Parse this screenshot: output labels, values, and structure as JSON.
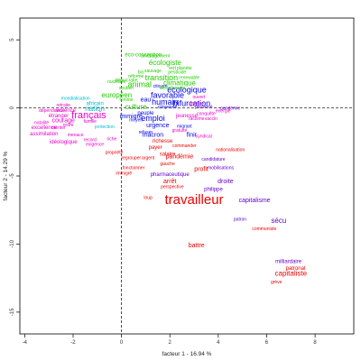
{
  "chart_data": {
    "type": "scatter",
    "title": "",
    "xlabel": "facteur  1  - 16.94 %",
    "ylabel": "facteur  2  - 14.29 %",
    "xlim": [
      -4.2,
      9.6
    ],
    "ylim": [
      -16.6,
      6.6
    ],
    "xticks": [
      "-4",
      "-2",
      "0",
      "2",
      "4",
      "6",
      "8"
    ],
    "xtick_values": [
      -4,
      -2,
      0,
      2,
      4,
      6,
      8
    ],
    "yticks": [
      "5",
      "0",
      "-5",
      "-10",
      "-15"
    ],
    "ytick_values": [
      5,
      0,
      -5,
      -10,
      -15
    ],
    "reference_lines": {
      "x": 0,
      "y": 0,
      "style": "dashed"
    },
    "colors": {
      "green": "#22cc00",
      "blue": "#0000ee",
      "cyan": "#00bbcc",
      "magenta": "#ee00cc",
      "red": "#ee0000",
      "purple": "#6600cc"
    },
    "labels": [
      {
        "text": "éco-conception",
        "x": 0.9,
        "y": 3.9,
        "color": "green",
        "size": 6
      },
      {
        "text": "aménagement",
        "x": 1.4,
        "y": 3.8,
        "color": "green",
        "size": 5
      },
      {
        "text": "écologiste",
        "x": 1.8,
        "y": 3.3,
        "color": "green",
        "size": 8
      },
      {
        "text": "bio",
        "x": 0.8,
        "y": 2.6,
        "color": "green",
        "size": 5
      },
      {
        "text": "vert",
        "x": 2.1,
        "y": 2.9,
        "color": "green",
        "size": 5
      },
      {
        "text": "planète",
        "x": 2.6,
        "y": 2.9,
        "color": "green",
        "size": 5
      },
      {
        "text": "sauvage",
        "x": 1.3,
        "y": 2.7,
        "color": "green",
        "size": 5
      },
      {
        "text": "pesticide",
        "x": 2.3,
        "y": 2.6,
        "color": "green",
        "size": 5
      },
      {
        "text": "réforme",
        "x": 0.6,
        "y": 2.3,
        "color": "green",
        "size": 5
      },
      {
        "text": "transition",
        "x": 1.65,
        "y": 2.2,
        "color": "green",
        "size": 9
      },
      {
        "text": "renewable",
        "x": 2.8,
        "y": 2.2,
        "color": "green",
        "size": 5
      },
      {
        "text": "démocratie",
        "x": 0.2,
        "y": 2.0,
        "color": "green",
        "size": 5
      },
      {
        "text": "animal",
        "x": 0.75,
        "y": 1.7,
        "color": "green",
        "size": 9
      },
      {
        "text": "climatique",
        "x": 2.4,
        "y": 1.8,
        "color": "green",
        "size": 8
      },
      {
        "text": "nucléaire",
        "x": -0.2,
        "y": 1.9,
        "color": "green",
        "size": 5
      },
      {
        "text": "citoyen",
        "x": 1.6,
        "y": 1.6,
        "color": "blue",
        "size": 5
      },
      {
        "text": "écologique",
        "x": 2.7,
        "y": 1.3,
        "color": "blue",
        "size": 9
      },
      {
        "text": "soutien",
        "x": 0.2,
        "y": 1.45,
        "color": "green",
        "size": 5
      },
      {
        "text": "dérèglement",
        "x": 2.1,
        "y": 1.45,
        "color": "green",
        "size": 5
      },
      {
        "text": "favorable",
        "x": 1.9,
        "y": 0.9,
        "color": "blue",
        "size": 9
      },
      {
        "text": "européen",
        "x": -0.2,
        "y": 0.9,
        "color": "green",
        "size": 8
      },
      {
        "text": "humain",
        "x": 1.8,
        "y": 0.4,
        "color": "blue",
        "size": 9
      },
      {
        "text": "eau",
        "x": 1.0,
        "y": 0.6,
        "color": "blue",
        "size": 7
      },
      {
        "text": "ouvert",
        "x": 3.2,
        "y": 0.8,
        "color": "magenta",
        "size": 5
      },
      {
        "text": "bifurcation",
        "x": 2.9,
        "y": 0.3,
        "color": "blue",
        "size": 9
      },
      {
        "text": "femme",
        "x": 0.2,
        "y": 0.6,
        "color": "green",
        "size": 5
      },
      {
        "text": "citoyenne",
        "x": 1.9,
        "y": 0.05,
        "color": "blue",
        "size": 5
      },
      {
        "text": "mondialisation",
        "x": -1.9,
        "y": 0.7,
        "color": "cyan",
        "size": 5
      },
      {
        "text": "africain",
        "x": -1.1,
        "y": 0.3,
        "color": "cyan",
        "size": 6
      },
      {
        "text": "retraite",
        "x": -2.4,
        "y": 0.2,
        "color": "magenta",
        "size": 5
      },
      {
        "text": "pensée",
        "x": 3.1,
        "y": 0.3,
        "color": "magenta",
        "size": 5
      },
      {
        "text": "pauvreté",
        "x": 3.4,
        "y": 0.05,
        "color": "purple",
        "size": 5
      },
      {
        "text": "nation",
        "x": -1.1,
        "y": -0.1,
        "color": "cyan",
        "size": 8
      },
      {
        "text": "culture",
        "x": 0.6,
        "y": 0.05,
        "color": "green",
        "size": 8
      },
      {
        "text": "violence",
        "x": -2.3,
        "y": -0.2,
        "color": "magenta",
        "size": 6
      },
      {
        "text": "dépendance",
        "x": -2.9,
        "y": -0.2,
        "color": "magenta",
        "size": 5
      },
      {
        "text": "pandémie",
        "x": 4.5,
        "y": -0.05,
        "color": "purple",
        "size": 5
      },
      {
        "text": "énergie",
        "x": 4.2,
        "y": -0.25,
        "color": "magenta",
        "size": 5
      },
      {
        "text": "peuple",
        "x": 1.0,
        "y": -0.4,
        "color": "blue",
        "size": 6
      },
      {
        "text": "français",
        "x": -1.35,
        "y": -0.55,
        "color": "magenta",
        "size": 11
      },
      {
        "text": "étranger",
        "x": -2.6,
        "y": -0.6,
        "color": "magenta",
        "size": 6
      },
      {
        "text": "immigré",
        "x": 0.4,
        "y": -0.65,
        "color": "blue",
        "size": 7
      },
      {
        "text": "emploi",
        "x": 1.3,
        "y": -0.8,
        "color": "blue",
        "size": 9
      },
      {
        "text": "jeunesse",
        "x": 2.7,
        "y": -0.6,
        "color": "magenta",
        "size": 6
      },
      {
        "text": "conquête",
        "x": 3.5,
        "y": -0.45,
        "color": "magenta",
        "size": 5
      },
      {
        "text": "racisme",
        "x": 3.1,
        "y": -0.8,
        "color": "magenta",
        "size": 5
      },
      {
        "text": "courage",
        "x": -2.4,
        "y": -0.95,
        "color": "magenta",
        "size": 7
      },
      {
        "text": "famille",
        "x": -1.3,
        "y": -1.0,
        "color": "magenta",
        "size": 5
      },
      {
        "text": "moyen",
        "x": 0.6,
        "y": -0.9,
        "color": "blue",
        "size": 5
      },
      {
        "text": "vaccin",
        "x": 3.7,
        "y": -0.8,
        "color": "magenta",
        "size": 5
      },
      {
        "text": "natalité",
        "x": -3.3,
        "y": -1.1,
        "color": "magenta",
        "size": 5
      },
      {
        "text": "ordre",
        "x": -2.2,
        "y": -1.25,
        "color": "magenta",
        "size": 5
      },
      {
        "text": "urgence",
        "x": 1.5,
        "y": -1.3,
        "color": "blue",
        "size": 7
      },
      {
        "text": "migrant",
        "x": 2.6,
        "y": -1.35,
        "color": "blue",
        "size": 5
      },
      {
        "text": "excellence",
        "x": -3.2,
        "y": -1.45,
        "color": "magenta",
        "size": 6
      },
      {
        "text": "mériter",
        "x": -2.6,
        "y": -1.45,
        "color": "magenta",
        "size": 5
      },
      {
        "text": "protection",
        "x": -0.7,
        "y": -1.4,
        "color": "cyan",
        "size": 5
      },
      {
        "text": "refuser",
        "x": 1.0,
        "y": -1.8,
        "color": "blue",
        "size": 5
      },
      {
        "text": "gratuité",
        "x": 2.4,
        "y": -1.65,
        "color": "magenta",
        "size": 5
      },
      {
        "text": "assimilation",
        "x": -3.2,
        "y": -1.9,
        "color": "magenta",
        "size": 6
      },
      {
        "text": "macron",
        "x": 1.3,
        "y": -2.0,
        "color": "blue",
        "size": 7
      },
      {
        "text": "finir",
        "x": 2.9,
        "y": -2.0,
        "color": "blue",
        "size": 7
      },
      {
        "text": "syndical",
        "x": 3.4,
        "y": -2.1,
        "color": "magenta",
        "size": 5
      },
      {
        "text": "menace",
        "x": -1.9,
        "y": -2.0,
        "color": "magenta",
        "size": 5
      },
      {
        "text": "idéologique",
        "x": -2.4,
        "y": -2.5,
        "color": "magenta",
        "size": 6
      },
      {
        "text": "record",
        "x": -1.3,
        "y": -2.35,
        "color": "magenta",
        "size": 5
      },
      {
        "text": "riche",
        "x": -0.4,
        "y": -2.3,
        "color": "magenta",
        "size": 5
      },
      {
        "text": "richesse",
        "x": 1.7,
        "y": -2.45,
        "color": "red",
        "size": 6
      },
      {
        "text": "commander",
        "x": 2.6,
        "y": -2.8,
        "color": "red",
        "size": 5
      },
      {
        "text": "exigence",
        "x": -1.1,
        "y": -2.7,
        "color": "magenta",
        "size": 5
      },
      {
        "text": "payer",
        "x": 1.4,
        "y": -2.9,
        "color": "red",
        "size": 6
      },
      {
        "text": "propriété",
        "x": -0.3,
        "y": -3.3,
        "color": "red",
        "size": 5
      },
      {
        "text": "nationalisation",
        "x": 4.5,
        "y": -3.1,
        "color": "red",
        "size": 5
      },
      {
        "text": "salaire",
        "x": 1.9,
        "y": -3.4,
        "color": "red",
        "size": 6
      },
      {
        "text": "regrouper",
        "x": 0.4,
        "y": -3.7,
        "color": "red",
        "size": 5
      },
      {
        "text": "argent",
        "x": 1.1,
        "y": -3.7,
        "color": "red",
        "size": 5
      },
      {
        "text": "pandémie",
        "x": 2.4,
        "y": -3.6,
        "color": "red",
        "size": 7
      },
      {
        "text": "candidature",
        "x": 3.8,
        "y": -3.8,
        "color": "purple",
        "size": 5
      },
      {
        "text": "gauche",
        "x": 1.9,
        "y": -4.1,
        "color": "red",
        "size": 5
      },
      {
        "text": "fonctionner",
        "x": 0.5,
        "y": -4.4,
        "color": "red",
        "size": 5
      },
      {
        "text": "mobilisations",
        "x": 4.1,
        "y": -4.4,
        "color": "purple",
        "size": 5
      },
      {
        "text": "profit",
        "x": 3.3,
        "y": -4.5,
        "color": "red",
        "size": 7
      },
      {
        "text": "immigré",
        "x": 0.1,
        "y": -4.8,
        "color": "red",
        "size": 5
      },
      {
        "text": "pharmaceutique",
        "x": 2.0,
        "y": -4.9,
        "color": "purple",
        "size": 6
      },
      {
        "text": "arrêt",
        "x": 2.0,
        "y": -5.4,
        "color": "red",
        "size": 7
      },
      {
        "text": "droite",
        "x": 4.3,
        "y": -5.4,
        "color": "purple",
        "size": 7
      },
      {
        "text": "perspective",
        "x": 2.1,
        "y": -5.8,
        "color": "red",
        "size": 5
      },
      {
        "text": "philippe",
        "x": 3.8,
        "y": -6.0,
        "color": "purple",
        "size": 6
      },
      {
        "text": "loup",
        "x": 1.1,
        "y": -6.6,
        "color": "red",
        "size": 5
      },
      {
        "text": "travailleur",
        "x": 3.0,
        "y": -6.8,
        "color": "red",
        "size": 15
      },
      {
        "text": "capitalisme",
        "x": 5.5,
        "y": -6.8,
        "color": "purple",
        "size": 7
      },
      {
        "text": "patron",
        "x": 4.9,
        "y": -8.2,
        "color": "purple",
        "size": 5
      },
      {
        "text": "sécu",
        "x": 6.5,
        "y": -8.3,
        "color": "purple",
        "size": 8
      },
      {
        "text": "communiste",
        "x": 5.9,
        "y": -8.9,
        "color": "red",
        "size": 5
      },
      {
        "text": "battre",
        "x": 3.1,
        "y": -10.1,
        "color": "red",
        "size": 7
      },
      {
        "text": "milliardaire",
        "x": 6.9,
        "y": -11.3,
        "color": "purple",
        "size": 6
      },
      {
        "text": "patronat",
        "x": 7.2,
        "y": -11.8,
        "color": "red",
        "size": 6
      },
      {
        "text": "capitaliste",
        "x": 7.0,
        "y": -12.2,
        "color": "red",
        "size": 8
      },
      {
        "text": "grève",
        "x": 6.4,
        "y": -12.8,
        "color": "red",
        "size": 5
      }
    ]
  }
}
